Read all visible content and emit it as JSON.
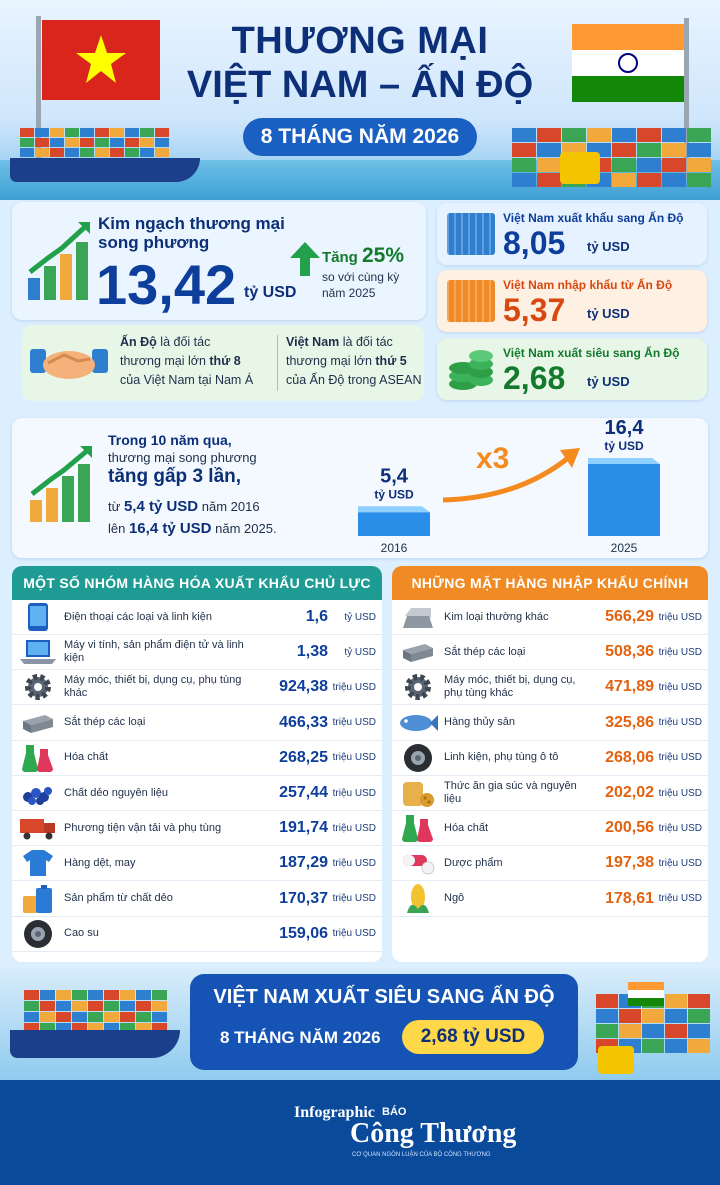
{
  "header": {
    "title_line1": "THƯƠNG MẠI",
    "title_line2": "VIỆT NAM – ẤN ĐỘ",
    "period": "8 THÁNG NĂM 2026"
  },
  "total": {
    "label_line1": "Kim ngạch thương mại",
    "label_line2": "song phương",
    "value": "13,42",
    "unit": "tỷ USD",
    "growth_prefix": "Tăng ",
    "growth_value": "25%",
    "growth_line2": "so với cùng kỳ",
    "growth_line3": "năm 2025"
  },
  "partners": {
    "left_bold": "Ấn Độ",
    "left_text1": " là đối tác",
    "left_text2_a": "thương mại lớn ",
    "left_text2_b": "thứ 8",
    "left_text3": "của Việt Nam tại Nam Á",
    "right_bold": "Việt Nam",
    "right_text1": " là đối tác",
    "right_text2_a": "thương mại lớn ",
    "right_text2_b": "thứ 5",
    "right_text3": "của Ấn Độ trong ASEAN"
  },
  "right_cards": [
    {
      "label": "Việt Nam xuất khẩu sang Ấn Độ",
      "value": "8,05",
      "unit": "tỷ USD",
      "color": "#0d3e9c",
      "bg": "#e6f2ff"
    },
    {
      "label": "Việt Nam nhập khẩu từ Ấn Độ",
      "value": "5,37",
      "unit": "tỷ USD",
      "color": "#d9480f",
      "bg": "#fff0e4"
    },
    {
      "label": "Việt Nam xuất siêu sang Ấn Độ",
      "value": "2,68",
      "unit": "tỷ USD",
      "color": "#137a2d",
      "bg": "#e8f6e8"
    }
  ],
  "trend": {
    "line1": "Trong 10 năm qua,",
    "line2": "thương mại song phương",
    "line3": "tăng gấp 3 lần,",
    "line4_a": "từ ",
    "line4_b": "5,4 tỷ USD",
    "line4_c": " năm 2016",
    "line5_a": "lên ",
    "line5_b": "16,4 tỷ USD",
    "line5_c": " năm 2025.",
    "multiplier": "x3"
  },
  "chart_data": {
    "type": "bar",
    "categories": [
      "2016",
      "2025"
    ],
    "values": [
      5.4,
      16.4
    ],
    "value_labels": [
      "5,4",
      "16,4"
    ],
    "unit": "tỷ USD",
    "ylim": [
      0,
      16.4
    ]
  },
  "exports": {
    "title": "MỘT SỐ NHÓM HÀNG HÓA XUẤT KHẨU CHỦ LỰC",
    "items": [
      {
        "name": "Điện thoại các loại và linh kiện",
        "value": "1,6",
        "unit": "tỷ USD",
        "icon": "phone-icon"
      },
      {
        "name": "Máy vi tính, sản phẩm điện tử và linh kiện",
        "value": "1,38",
        "unit": "tỷ USD",
        "icon": "laptop-icon"
      },
      {
        "name": "Máy móc, thiết bị, dụng cụ, phụ tùng khác",
        "value": "924,38",
        "unit": "triệu USD",
        "icon": "gear-icon"
      },
      {
        "name": "Sắt thép các loại",
        "value": "466,33",
        "unit": "triệu USD",
        "icon": "steel-icon"
      },
      {
        "name": "Hóa chất",
        "value": "268,25",
        "unit": "triệu USD",
        "icon": "flask-icon"
      },
      {
        "name": "Chất dẻo nguyên liệu",
        "value": "257,44",
        "unit": "triệu USD",
        "icon": "pellets-icon"
      },
      {
        "name": "Phương tiện vận tải và phụ tùng",
        "value": "191,74",
        "unit": "triệu USD",
        "icon": "truck-icon"
      },
      {
        "name": "Hàng dệt, may",
        "value": "187,29",
        "unit": "triệu USD",
        "icon": "shirt-icon"
      },
      {
        "name": "Sản phẩm từ chất dẻo",
        "value": "170,37",
        "unit": "triệu USD",
        "icon": "plastic-icon"
      },
      {
        "name": "Cao su",
        "value": "159,06",
        "unit": "triệu USD",
        "icon": "tire-icon"
      }
    ]
  },
  "imports": {
    "title": "NHỮNG MẶT HÀNG NHẬP KHẨU CHÍNH",
    "items": [
      {
        "name": "Kim loại thường khác",
        "value": "566,29",
        "unit": "triệu USD",
        "icon": "ingot-icon"
      },
      {
        "name": "Sắt thép các loại",
        "value": "508,36",
        "unit": "triệu USD",
        "icon": "steel-icon"
      },
      {
        "name": "Máy móc, thiết bị, dụng cụ, phụ tùng khác",
        "value": "471,89",
        "unit": "triệu USD",
        "icon": "gear-icon"
      },
      {
        "name": "Hàng thủy sản",
        "value": "325,86",
        "unit": "triệu USD",
        "icon": "fish-icon"
      },
      {
        "name": "Linh kiện, phụ tùng ô tô",
        "value": "268,06",
        "unit": "triệu USD",
        "icon": "tire-icon"
      },
      {
        "name": "Thức ăn gia súc và nguyên liệu",
        "value": "202,02",
        "unit": "triệu USD",
        "icon": "feed-icon"
      },
      {
        "name": "Hóa chất",
        "value": "200,56",
        "unit": "triệu USD",
        "icon": "flask-icon"
      },
      {
        "name": "Dược phẩm",
        "value": "197,38",
        "unit": "triệu USD",
        "icon": "pill-icon"
      },
      {
        "name": "Ngô",
        "value": "178,61",
        "unit": "triệu USD",
        "icon": "corn-icon"
      }
    ]
  },
  "footer": {
    "line1": "VIỆT NAM XUẤT SIÊU SANG ẤN ĐỘ",
    "period": "8 THÁNG NĂM 2026",
    "value": "2,68 tỷ USD",
    "brand_small": "Infographic",
    "brand_top": "BÁO",
    "brand_name": "Công Thương",
    "brand_tag": "CƠ QUAN NGÔN LUẬN CỦA BỘ CÔNG THƯƠNG"
  }
}
